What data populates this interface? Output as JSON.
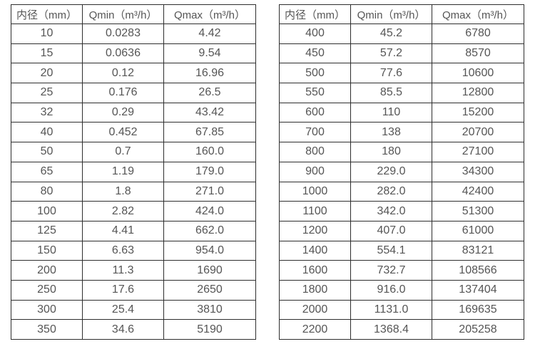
{
  "tables": [
    {
      "name": "flow-spec-table-small-diameters",
      "headers": [
        "内径（mm）",
        "Qmin（m³/h）",
        "Qmax（m³/h）"
      ],
      "rows": [
        [
          "10",
          "0.0283",
          "4.42"
        ],
        [
          "15",
          "0.0636",
          "9.54"
        ],
        [
          "20",
          "0.12",
          "16.96"
        ],
        [
          "25",
          "0.176",
          "26.5"
        ],
        [
          "32",
          "0.29",
          "43.42"
        ],
        [
          "40",
          "0.452",
          "67.85"
        ],
        [
          "50",
          "0.7",
          "160.0"
        ],
        [
          "65",
          "1.19",
          "179.0"
        ],
        [
          "80",
          "1.8",
          "271.0"
        ],
        [
          "100",
          "2.82",
          "424.0"
        ],
        [
          "125",
          "4.41",
          "662.0"
        ],
        [
          "150",
          "6.63",
          "954.0"
        ],
        [
          "200",
          "11.3",
          "1690"
        ],
        [
          "250",
          "17.6",
          "2650"
        ],
        [
          "300",
          "25.4",
          "3810"
        ],
        [
          "350",
          "34.6",
          "5190"
        ]
      ]
    },
    {
      "name": "flow-spec-table-large-diameters",
      "headers": [
        "内径（mm）",
        "Qmin（m³/h）",
        "Qmax（m³/h）"
      ],
      "rows": [
        [
          "400",
          "45.2",
          "6780"
        ],
        [
          "450",
          "57.2",
          "8570"
        ],
        [
          "500",
          "77.6",
          "10600"
        ],
        [
          "550",
          "85.5",
          "12800"
        ],
        [
          "600",
          "110",
          "15200"
        ],
        [
          "700",
          "138",
          "20700"
        ],
        [
          "800",
          "180",
          "27100"
        ],
        [
          "900",
          "229.0",
          "34300"
        ],
        [
          "1000",
          "282.0",
          "42400"
        ],
        [
          "1100",
          "342.0",
          "51300"
        ],
        [
          "1200",
          "407.0",
          "61000"
        ],
        [
          "1400",
          "554.1",
          "83121"
        ],
        [
          "1600",
          "732.7",
          "108566"
        ],
        [
          "1800",
          "916.0",
          "137404"
        ],
        [
          "2000",
          "1131.0",
          "169635"
        ],
        [
          "2200",
          "1368.4",
          "205258"
        ]
      ]
    }
  ],
  "colors": {
    "border": "#2e2e2e",
    "text": "#555555",
    "background": "#ffffff"
  }
}
